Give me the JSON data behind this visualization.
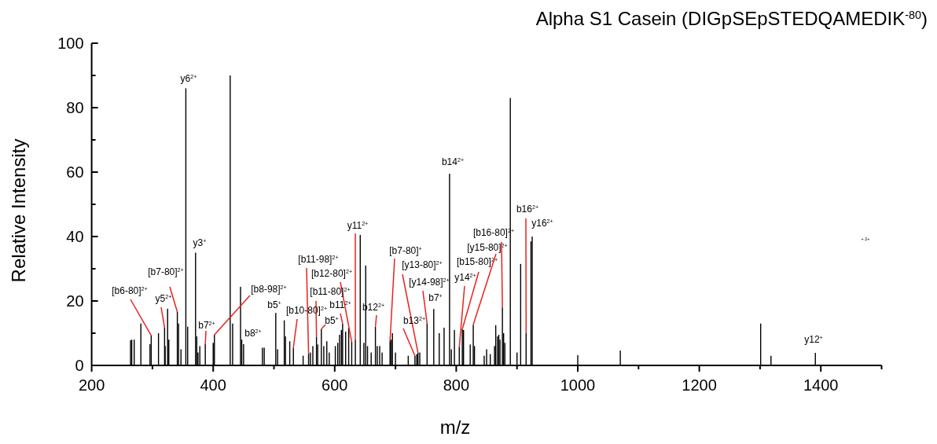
{
  "chart_data": {
    "type": "bar",
    "title": "Alpha S1 Casein (DIGpSEpSTEDQAMEDIK$^{-80}$)",
    "xlabel": "m/z",
    "ylabel": "Relative Intensity",
    "color": "#000000",
    "xlim": [
      200,
      1500
    ],
    "xticks": [
      200,
      {
        "value": 300,
        "label": null
      },
      400,
      {
        "value": 500,
        "label": null
      },
      600,
      {
        "value": 700,
        "label": null
      },
      800,
      {
        "value": 900,
        "label": null
      },
      1000,
      {
        "value": 1100,
        "label": null
      },
      1200,
      {
        "value": 1300,
        "label": null
      },
      1400,
      {
        "value": 1500,
        "label": null
      }
    ],
    "ylim": [
      0,
      100
    ],
    "yticks": [
      0,
      {
        "value": 10,
        "label": null
      },
      20,
      {
        "value": 30,
        "label": null
      },
      40,
      {
        "value": 50,
        "label": null
      },
      60,
      {
        "value": 70,
        "label": null
      },
      80,
      {
        "value": 90,
        "label": null
      },
      100
    ],
    "x": [
      264,
      266,
      270,
      281,
      296,
      298,
      310,
      320,
      321,
      325,
      327,
      341,
      343,
      347,
      355,
      358,
      371,
      373,
      375,
      378,
      387,
      400,
      402,
      428,
      432,
      445,
      447,
      450,
      481,
      484,
      503,
      506,
      517,
      519,
      526,
      532,
      548,
      557,
      560,
      564,
      570,
      572,
      578,
      582,
      587,
      591,
      601,
      605,
      608,
      611,
      613,
      618,
      623,
      628,
      634,
      642,
      648,
      651,
      654,
      660,
      667,
      670,
      674,
      678,
      691,
      693,
      695,
      700,
      721,
      732,
      735,
      737,
      740,
      752,
      763,
      772,
      780,
      789,
      792,
      797,
      805,
      810,
      812,
      823,
      828,
      830,
      846,
      850,
      856,
      863,
      865,
      868,
      870,
      872,
      876,
      878,
      880,
      889,
      900,
      906,
      915,
      923,
      925,
      1000,
      1070,
      1301,
      1318,
      1391
    ],
    "values": [
      7.8,
      8,
      8,
      13,
      6.6,
      9.3,
      10,
      11.7,
      6,
      17.6,
      8,
      16.6,
      13,
      5,
      86,
      12,
      35,
      9,
      4,
      6,
      6.6,
      7,
      9.5,
      90,
      13,
      24.4,
      8,
      6.6,
      5.5,
      5.5,
      16.3,
      5,
      14,
      9,
      7.5,
      5.5,
      3,
      3.7,
      4,
      6,
      8.8,
      6.5,
      11.3,
      6,
      7.5,
      4,
      6,
      7,
      9.5,
      11,
      13,
      10.5,
      11.7,
      7.3,
      8,
      40.5,
      7,
      31,
      6,
      4,
      12,
      6,
      6,
      4,
      7.5,
      8,
      10,
      4,
      3,
      3,
      3.5,
      4,
      4,
      13,
      17.5,
      10,
      11.7,
      59.5,
      5,
      11,
      5.7,
      11.3,
      11,
      6.5,
      12.6,
      6,
      3,
      5,
      3.5,
      6,
      12.5,
      9,
      9.5,
      8,
      18,
      10,
      7,
      83,
      4,
      31.5,
      10,
      38.5,
      40,
      3.2,
      4.6,
      13,
      3,
      3.9
    ],
    "annotations": [
      {
        "text": "y6$^{2+}$",
        "x": 355,
        "y": 86
      },
      {
        "text": "y3$^{+}$",
        "x": 371,
        "y": 35
      },
      {
        "text": "[b7-80]$^{2+}$",
        "x": 341,
        "y": 16.6
      },
      {
        "text": "[b6-80]$^{2+}$",
        "x": 298,
        "y": 9.3
      },
      {
        "text": "y5$^{2+}$",
        "x": 320,
        "y": 11.7
      },
      {
        "text": "[b8-98]$^{2+}$",
        "x": 402,
        "y": 9.5
      },
      {
        "text": "b7$^{2+}$",
        "x": 387,
        "y": 6.6
      },
      {
        "text": "b8$^{2+}$",
        "x": 450,
        "y": 6.6
      },
      {
        "text": "b5$^{+}$",
        "x": 503,
        "y": 16.3
      },
      {
        "text": "[b11-98]$^{2+}$",
        "x": 557,
        "y": 3.7
      },
      {
        "text": "[b12-80]$^{2+}$",
        "x": 628,
        "y": 7.3
      },
      {
        "text": "[b11-80]$^{2+}$",
        "x": 570,
        "y": 8.8
      },
      {
        "text": "[b10-80]$^{2+}$",
        "x": 532,
        "y": 5.5
      },
      {
        "text": "b11$^{2+}$",
        "x": 613,
        "y": 13
      },
      {
        "text": "b5$^{+}$",
        "x": 578,
        "y": 11.3
      },
      {
        "text": "y11$^{2+}$",
        "x": 634,
        "y": 8
      },
      {
        "text": "b12$^{2+}$",
        "x": 667,
        "y": 12
      },
      {
        "text": "[b7-80]$^{+}$",
        "x": 691,
        "y": 7.5
      },
      {
        "text": "[y13-80]$^{2+}$",
        "x": 737,
        "y": 4
      },
      {
        "text": "b13$^{2+}$",
        "x": 732,
        "y": 3
      },
      {
        "text": "[y14-98]$^{2+}$",
        "x": 752,
        "y": 13
      },
      {
        "text": "b7$^{+}$",
        "x": 763,
        "y": 17.5
      },
      {
        "text": "b14$^{2+}$",
        "x": 789,
        "y": 59.5
      },
      {
        "text": "y14$^{2+}$",
        "x": 805,
        "y": 5.7
      },
      {
        "text": "[b15-80]$^{2+}$",
        "x": 810,
        "y": 11.3
      },
      {
        "text": "[y15-80]$^{2+}$",
        "x": 828,
        "y": 12.6
      },
      {
        "text": "[b16-80]$^{2+}$",
        "x": 876,
        "y": 18
      },
      {
        "text": "b16$^{2+}$",
        "x": 915,
        "y": 10
      },
      {
        "text": "y16$^{2+}$",
        "x": 925,
        "y": 40
      },
      {
        "text": "y12$^{+}$",
        "x": 1391,
        "y": 3.9
      },
      "$^{+ 2+}$"
    ]
  }
}
